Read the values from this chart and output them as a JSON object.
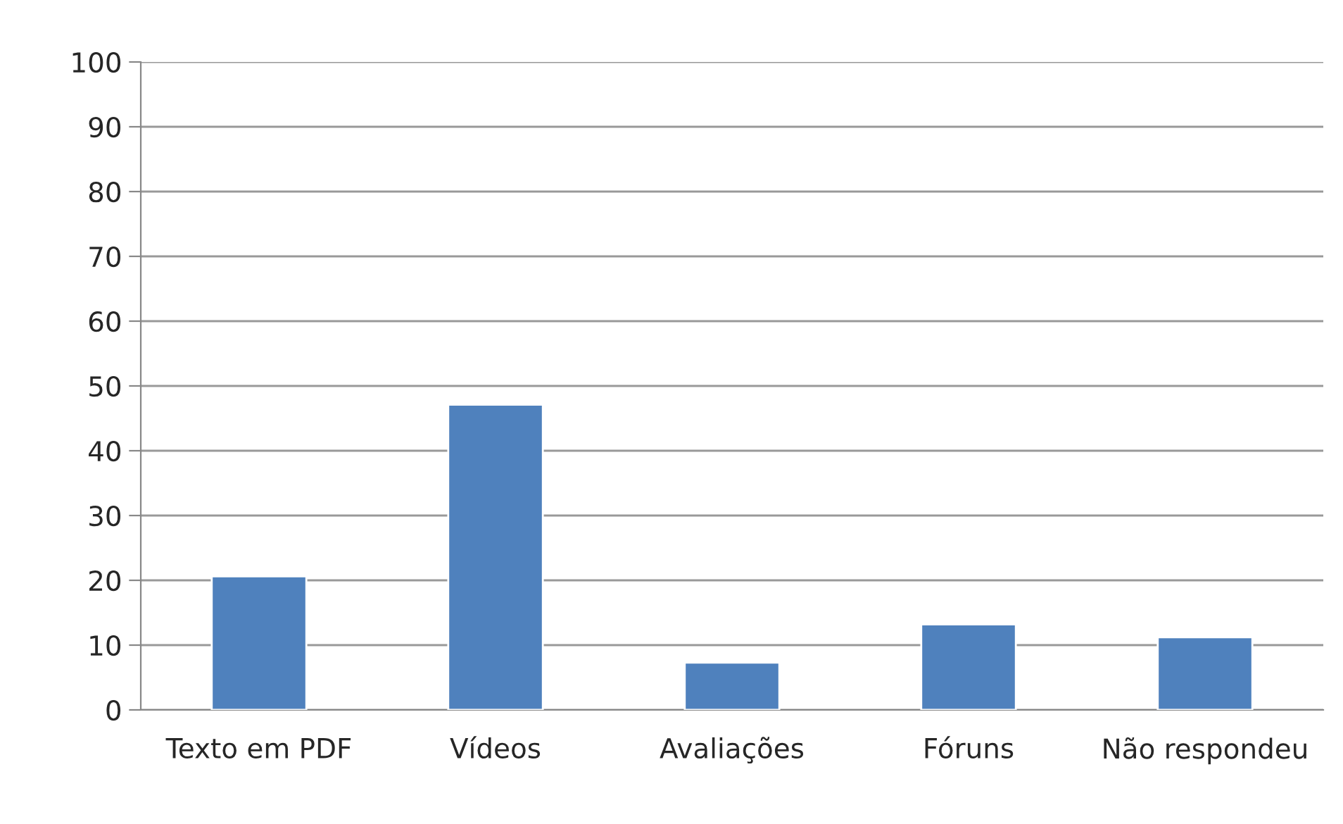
{
  "chart_data": {
    "type": "bar",
    "categories": [
      "Texto em PDF",
      "Vídeos",
      "Avaliações",
      "Fóruns",
      "Não respondeu"
    ],
    "values": [
      20.6,
      47.1,
      7.3,
      13.2,
      11.2
    ],
    "color": "#4f81bd",
    "ylim": [
      0,
      100
    ],
    "yticks": [
      0,
      10,
      20,
      30,
      40,
      50,
      60,
      70,
      80,
      90,
      100
    ],
    "grid": "y",
    "legend": false
  }
}
